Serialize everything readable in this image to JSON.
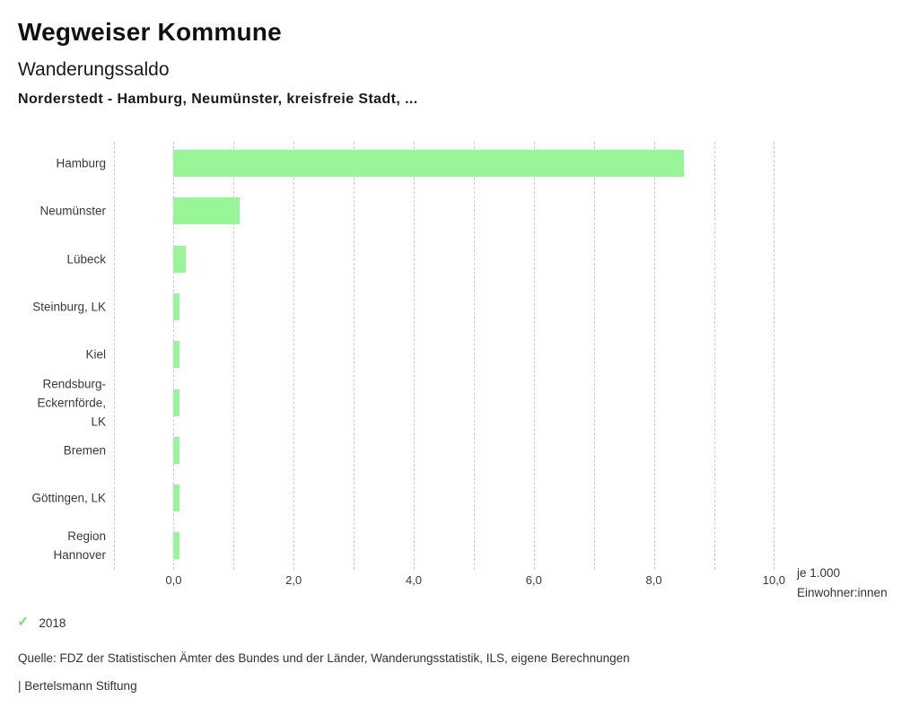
{
  "header": {
    "app_title": "Wegweiser Kommune",
    "chart_title": "Wanderungssaldo",
    "comparison": "Norderstedt - Hamburg, Neumünster, kreisfreie Stadt, ..."
  },
  "chart_data": {
    "type": "bar",
    "orientation": "horizontal",
    "title": "Wanderungssaldo",
    "subtitle": "Norderstedt - Hamburg, Neumünster, kreisfreie Stadt, ...",
    "categories": [
      "Hamburg",
      "Neumünster",
      "Lübeck",
      "Steinburg, LK",
      "Kiel",
      "Rendsburg-Eckernförde, LK",
      "Bremen",
      "Göttingen, LK",
      "Region Hannover"
    ],
    "label_lines": [
      [
        "Hamburg"
      ],
      [
        "Neumünster"
      ],
      [
        "Lübeck"
      ],
      [
        "Steinburg, LK"
      ],
      [
        "Kiel"
      ],
      [
        "Rendsburg-",
        "Eckernförde,",
        "LK"
      ],
      [
        "Bremen"
      ],
      [
        "Göttingen, LK"
      ],
      [
        "Region",
        "Hannover"
      ]
    ],
    "series": [
      {
        "name": "2018",
        "values": [
          8.5,
          1.1,
          0.2,
          0.1,
          0.1,
          0.1,
          0.1,
          0.1,
          0.1
        ]
      }
    ],
    "xlabel": "je 1.000 Einwohner:innen",
    "unit_label_lines": [
      "je 1.000",
      "Einwohner:innen"
    ],
    "xlim": [
      -1.0,
      10.2
    ],
    "gridline_values": [
      -1,
      0,
      1,
      2,
      3,
      4,
      5,
      6,
      7,
      8,
      9,
      10
    ],
    "tick_values": [
      0,
      2,
      4,
      6,
      8,
      10
    ],
    "tick_labels": [
      "0,0",
      "2,0",
      "4,0",
      "6,0",
      "8,0",
      "10,0"
    ],
    "grid": true,
    "legend_position": "bottom-left"
  },
  "legend": {
    "check_icon": "✓",
    "items": [
      {
        "label": "2018",
        "checked": true
      }
    ]
  },
  "footer": {
    "source": "Quelle: FDZ der Statistischen Ämter des Bundes und der Länder, Wanderungsstatistik, ILS, eigene Berechnungen",
    "branding": "| Bertelsmann Stiftung"
  },
  "colors": {
    "bar": "#98f598",
    "check": "#84dd84",
    "grid": "#c9c9c9",
    "title": "#111111",
    "text": "#3a3a3a"
  }
}
